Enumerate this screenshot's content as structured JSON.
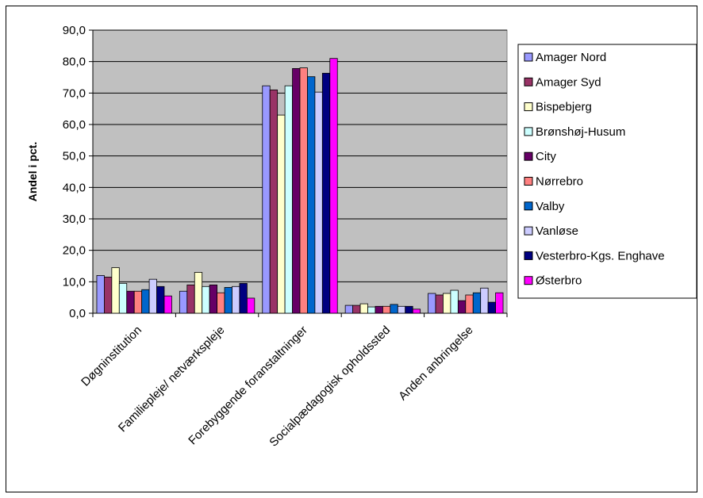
{
  "chart_data": {
    "type": "bar",
    "title": "",
    "xlabel": "",
    "ylabel": "Andel i pct.",
    "ylim": [
      0,
      90
    ],
    "yticks": [
      "0,0",
      "10,0",
      "20,0",
      "30,0",
      "40,0",
      "50,0",
      "60,0",
      "70,0",
      "80,0",
      "90,0"
    ],
    "categories": [
      "Døgninstitution",
      "Familiepleje/ netværkspleje",
      "Forebyggende foranstaltninger",
      "Socialpædagogisk opholdssted",
      "Anden anbringelse"
    ],
    "legend_position": "right",
    "grid": true,
    "plot_background": "#c0c0c0",
    "series": [
      {
        "name": "Amager Nord",
        "color": "#9999ff",
        "values": [
          12.0,
          7.0,
          72.3,
          2.5,
          6.3
        ]
      },
      {
        "name": "Amager Syd",
        "color": "#993366",
        "values": [
          11.5,
          9.0,
          71.0,
          2.5,
          5.8
        ]
      },
      {
        "name": "Bispebjerg",
        "color": "#ffffcc",
        "values": [
          14.5,
          13.0,
          63.0,
          3.0,
          6.3
        ]
      },
      {
        "name": "Brønshøj-Husum",
        "color": "#ccffff",
        "values": [
          9.5,
          8.5,
          72.3,
          2.0,
          7.3
        ]
      },
      {
        "name": "City",
        "color": "#660066",
        "values": [
          7.0,
          9.0,
          77.8,
          2.2,
          4.0
        ]
      },
      {
        "name": "Nørrebro",
        "color": "#ff8080",
        "values": [
          7.0,
          6.5,
          78.0,
          2.2,
          5.8
        ]
      },
      {
        "name": "Valby",
        "color": "#0066cc",
        "values": [
          7.5,
          8.2,
          75.2,
          2.8,
          6.5
        ]
      },
      {
        "name": "Vanløse",
        "color": "#ccccff",
        "values": [
          10.8,
          8.5,
          70.3,
          2.2,
          8.0
        ]
      },
      {
        "name": "Vesterbro-Kgs. Enghave",
        "color": "#000080",
        "values": [
          8.5,
          9.5,
          76.3,
          2.2,
          3.5
        ]
      },
      {
        "name": "Østerbro",
        "color": "#ff00ff",
        "values": [
          5.5,
          4.8,
          81.0,
          1.3,
          6.5
        ]
      }
    ]
  }
}
